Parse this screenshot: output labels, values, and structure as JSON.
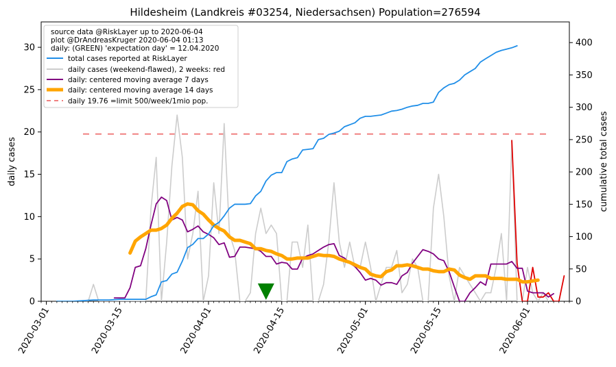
{
  "chart_data": {
    "type": "line",
    "title": "Hildesheim (Landkreis #03254, Niedersachsen) Population=276594",
    "ylabel_left": "daily cases",
    "ylabel_right": "cumulative total cases",
    "ylabel_left_color": "#800080",
    "ylabel_right_color": "#1f8ee8",
    "x_start": "2020-02-29",
    "x_end": "2020-06-09",
    "x_ticks": [
      "2020-03-01",
      "2020-03-15",
      "2020-04-01",
      "2020-04-15",
      "2020-05-01",
      "2020-05-15",
      "2020-06-01"
    ],
    "ylim_left": [
      0,
      33
    ],
    "ylim_right": [
      0,
      432
    ],
    "yticks_left": [
      "0",
      "5",
      "10",
      "15",
      "20",
      "25",
      "30"
    ],
    "yticks_right": [
      "0",
      "50",
      "100",
      "150",
      "200",
      "250",
      "300",
      "350",
      "400"
    ],
    "legend": {
      "placement": "top-left",
      "header_lines": [
        "source data @RiskLayer up to 2020-06-04",
        "plot @DrAndreasKruger 2020-06-04 01:13",
        "daily: (GREEN) 'expectation day' = 12.04.2020"
      ],
      "entries": [
        {
          "label": "total cases reported at RiskLayer",
          "color": "#1f8ee8",
          "style": "solid"
        },
        {
          "label": "daily cases (weekend-flawed), 2 weeks: red",
          "color": "#cccccc",
          "style": "solid"
        },
        {
          "label": "daily: centered moving average 7 days",
          "color": "#800080",
          "style": "solid"
        },
        {
          "label": "daily: centered moving average 14 days",
          "color": "#ffa500",
          "style": "thick"
        },
        {
          "label": "daily 19.76 =limit 500/week/1mio pop.",
          "color": "#f08080",
          "style": "dashed"
        }
      ]
    },
    "limit_line": {
      "y": 19.76,
      "from_day": 8,
      "to_day": 97
    },
    "expectation_day": 43,
    "cumulative": [
      [
        3,
        0
      ],
      [
        6,
        0
      ],
      [
        8,
        1
      ],
      [
        10,
        2
      ],
      [
        13,
        2
      ],
      [
        15,
        3
      ],
      [
        17,
        3
      ],
      [
        18,
        3
      ],
      [
        19,
        3
      ],
      [
        20,
        3
      ],
      [
        21,
        7
      ],
      [
        22,
        10
      ],
      [
        23,
        30
      ],
      [
        24,
        32
      ],
      [
        25,
        42
      ],
      [
        26,
        45
      ],
      [
        27,
        62
      ],
      [
        28,
        83
      ],
      [
        29,
        88
      ],
      [
        30,
        97
      ],
      [
        31,
        97
      ],
      [
        32,
        104
      ],
      [
        33,
        117
      ],
      [
        34,
        122
      ],
      [
        35,
        132
      ],
      [
        36,
        144
      ],
      [
        37,
        150
      ],
      [
        38,
        150
      ],
      [
        39,
        150
      ],
      [
        40,
        151
      ],
      [
        41,
        163
      ],
      [
        42,
        170
      ],
      [
        43,
        186
      ],
      [
        44,
        195
      ],
      [
        45,
        199
      ],
      [
        46,
        199
      ],
      [
        47,
        216
      ],
      [
        48,
        220
      ],
      [
        49,
        222
      ],
      [
        50,
        234
      ],
      [
        51,
        235
      ],
      [
        52,
        236
      ],
      [
        53,
        250
      ],
      [
        54,
        252
      ],
      [
        55,
        258
      ],
      [
        56,
        260
      ],
      [
        57,
        263
      ],
      [
        58,
        270
      ],
      [
        59,
        273
      ],
      [
        60,
        276
      ],
      [
        61,
        283
      ],
      [
        62,
        286
      ],
      [
        63,
        286
      ],
      [
        64,
        287
      ],
      [
        65,
        288
      ],
      [
        66,
        291
      ],
      [
        67,
        294
      ],
      [
        68,
        295
      ],
      [
        69,
        297
      ],
      [
        70,
        300
      ],
      [
        71,
        302
      ],
      [
        72,
        303
      ],
      [
        73,
        306
      ],
      [
        74,
        306
      ],
      [
        75,
        308
      ],
      [
        76,
        323
      ],
      [
        77,
        330
      ],
      [
        78,
        335
      ],
      [
        79,
        337
      ],
      [
        80,
        342
      ],
      [
        81,
        350
      ],
      [
        82,
        355
      ],
      [
        83,
        360
      ],
      [
        84,
        370
      ],
      [
        85,
        375
      ],
      [
        86,
        380
      ],
      [
        87,
        385
      ],
      [
        88,
        388
      ],
      [
        89,
        390
      ],
      [
        90,
        392
      ],
      [
        91,
        395
      ]
    ],
    "daily": [
      [
        5,
        0
      ],
      [
        6,
        0
      ],
      [
        7,
        0
      ],
      [
        8,
        0
      ],
      [
        9,
        0
      ],
      [
        10,
        2
      ],
      [
        11,
        0
      ],
      [
        12,
        0
      ],
      [
        13,
        0
      ],
      [
        14,
        0
      ],
      [
        15,
        0
      ],
      [
        16,
        0
      ],
      [
        17,
        0
      ],
      [
        18,
        0
      ],
      [
        19,
        0
      ],
      [
        20,
        0
      ],
      [
        21,
        11
      ],
      [
        22,
        17
      ],
      [
        23,
        0
      ],
      [
        24,
        7
      ],
      [
        25,
        16
      ],
      [
        26,
        22
      ],
      [
        27,
        17
      ],
      [
        28,
        5
      ],
      [
        29,
        8
      ],
      [
        30,
        13
      ],
      [
        31,
        0
      ],
      [
        32,
        3
      ],
      [
        33,
        14
      ],
      [
        34,
        8
      ],
      [
        35,
        21
      ],
      [
        36,
        8
      ],
      [
        37,
        6
      ],
      [
        38,
        0
      ],
      [
        39,
        0
      ],
      [
        40,
        1
      ],
      [
        41,
        8
      ],
      [
        42,
        11
      ],
      [
        43,
        8
      ],
      [
        44,
        9
      ],
      [
        45,
        8
      ],
      [
        46,
        0
      ],
      [
        47,
        0
      ],
      [
        48,
        7
      ],
      [
        49,
        7
      ],
      [
        50,
        4
      ],
      [
        51,
        9
      ],
      [
        52,
        0
      ],
      [
        53,
        0
      ],
      [
        54,
        2
      ],
      [
        55,
        7
      ],
      [
        56,
        14
      ],
      [
        57,
        7
      ],
      [
        58,
        4
      ],
      [
        59,
        7
      ],
      [
        60,
        4
      ],
      [
        61,
        4
      ],
      [
        62,
        7
      ],
      [
        63,
        4
      ],
      [
        64,
        0
      ],
      [
        65,
        2
      ],
      [
        66,
        4
      ],
      [
        67,
        4
      ],
      [
        68,
        6
      ],
      [
        69,
        1
      ],
      [
        70,
        2
      ],
      [
        71,
        5
      ],
      [
        72,
        4
      ],
      [
        73,
        0
      ],
      [
        74,
        0
      ],
      [
        75,
        11
      ],
      [
        76,
        15
      ],
      [
        77,
        10
      ],
      [
        78,
        3
      ],
      [
        79,
        0
      ],
      [
        80,
        4
      ],
      [
        81,
        3
      ],
      [
        82,
        2
      ],
      [
        83,
        1
      ],
      [
        84,
        0
      ],
      [
        85,
        1
      ],
      [
        86,
        1
      ],
      [
        87,
        4
      ],
      [
        88,
        8
      ],
      [
        89,
        0
      ],
      [
        90,
        19
      ],
      [
        91,
        0
      ],
      [
        92,
        0
      ],
      [
        93,
        4
      ],
      [
        94,
        1
      ],
      [
        95,
        0
      ],
      [
        96,
        1
      ],
      [
        97,
        0
      ]
    ],
    "daily_recent": [
      [
        90,
        19
      ],
      [
        91,
        4.5
      ],
      [
        92,
        0
      ],
      [
        93,
        0
      ],
      [
        94,
        4
      ],
      [
        95,
        0.5
      ],
      [
        96,
        0.5
      ],
      [
        97,
        1
      ],
      [
        98,
        0
      ],
      [
        99,
        0
      ],
      [
        100,
        3
      ]
    ],
    "ma7": [
      [
        14,
        0.4
      ],
      [
        15,
        0.4
      ],
      [
        16,
        0.4
      ],
      [
        17,
        1.6
      ],
      [
        18,
        4
      ],
      [
        19,
        4.2
      ],
      [
        20,
        6.2
      ],
      [
        21,
        9
      ],
      [
        22,
        11.5
      ],
      [
        23,
        12.3
      ],
      [
        24,
        11.9
      ],
      [
        25,
        9.6
      ],
      [
        26,
        9.9
      ],
      [
        27,
        9.6
      ],
      [
        28,
        8.2
      ],
      [
        29,
        8.5
      ],
      [
        30,
        8.9
      ],
      [
        31,
        8.2
      ],
      [
        32,
        7.9
      ],
      [
        33,
        7.5
      ],
      [
        34,
        6.7
      ],
      [
        35,
        6.9
      ],
      [
        36,
        5.2
      ],
      [
        37,
        5.3
      ],
      [
        38,
        6.4
      ],
      [
        39,
        6.4
      ],
      [
        40,
        6.3
      ],
      [
        41,
        6.2
      ],
      [
        42,
        5.9
      ],
      [
        43,
        5.3
      ],
      [
        44,
        5.3
      ],
      [
        45,
        4.4
      ],
      [
        46,
        4.6
      ],
      [
        47,
        4.5
      ],
      [
        48,
        3.8
      ],
      [
        49,
        3.8
      ],
      [
        50,
        5.1
      ],
      [
        51,
        5.4
      ],
      [
        52,
        5.6
      ],
      [
        53,
        6
      ],
      [
        54,
        6.4
      ],
      [
        55,
        6.7
      ],
      [
        56,
        6.8
      ],
      [
        57,
        5.4
      ],
      [
        58,
        5.1
      ],
      [
        59,
        4.5
      ],
      [
        60,
        4.1
      ],
      [
        61,
        3.4
      ],
      [
        62,
        2.5
      ],
      [
        63,
        2.7
      ],
      [
        64,
        2.5
      ],
      [
        65,
        1.9
      ],
      [
        66,
        2.2
      ],
      [
        67,
        2.2
      ],
      [
        68,
        2
      ],
      [
        69,
        3
      ],
      [
        70,
        3.4
      ],
      [
        71,
        4.5
      ],
      [
        72,
        5.3
      ],
      [
        73,
        6.1
      ],
      [
        74,
        5.9
      ],
      [
        75,
        5.6
      ],
      [
        76,
        5
      ],
      [
        77,
        4.8
      ],
      [
        78,
        3.5
      ],
      [
        79,
        1.7
      ],
      [
        80,
        0
      ],
      [
        81,
        0
      ],
      [
        82,
        1
      ],
      [
        83,
        1.6
      ],
      [
        84,
        2.3
      ],
      [
        85,
        1.9
      ],
      [
        86,
        4.4
      ],
      [
        87,
        4.4
      ],
      [
        88,
        4.4
      ],
      [
        89,
        4.4
      ],
      [
        90,
        4.7
      ],
      [
        91,
        3.9
      ],
      [
        92,
        3.9
      ],
      [
        93,
        1.2
      ],
      [
        94,
        1
      ],
      [
        95,
        1
      ],
      [
        96,
        1
      ],
      [
        97,
        0.5
      ],
      [
        98,
        0.9
      ]
    ],
    "ma14": [
      [
        17,
        5.7
      ],
      [
        18,
        7.1
      ],
      [
        19,
        7.6
      ],
      [
        20,
        8
      ],
      [
        21,
        8.4
      ],
      [
        22,
        8.4
      ],
      [
        23,
        8.6
      ],
      [
        24,
        9
      ],
      [
        25,
        9.8
      ],
      [
        26,
        10.4
      ],
      [
        27,
        11.2
      ],
      [
        28,
        11.5
      ],
      [
        29,
        11.4
      ],
      [
        30,
        10.7
      ],
      [
        31,
        10.3
      ],
      [
        32,
        9.6
      ],
      [
        33,
        9
      ],
      [
        34,
        8.6
      ],
      [
        35,
        8.3
      ],
      [
        36,
        7.6
      ],
      [
        37,
        7.2
      ],
      [
        38,
        7.2
      ],
      [
        39,
        7
      ],
      [
        40,
        6.8
      ],
      [
        41,
        6.2
      ],
      [
        42,
        6.2
      ],
      [
        43,
        6
      ],
      [
        44,
        5.9
      ],
      [
        45,
        5.6
      ],
      [
        46,
        5.4
      ],
      [
        47,
        5
      ],
      [
        48,
        5
      ],
      [
        49,
        5.1
      ],
      [
        50,
        5.1
      ],
      [
        51,
        5.1
      ],
      [
        52,
        5.3
      ],
      [
        53,
        5.5
      ],
      [
        54,
        5.4
      ],
      [
        55,
        5.4
      ],
      [
        56,
        5.3
      ],
      [
        57,
        5
      ],
      [
        58,
        4.8
      ],
      [
        59,
        4.6
      ],
      [
        60,
        4.3
      ],
      [
        61,
        4
      ],
      [
        62,
        3.8
      ],
      [
        63,
        3.2
      ],
      [
        64,
        3
      ],
      [
        65,
        2.9
      ],
      [
        66,
        3.5
      ],
      [
        67,
        3.7
      ],
      [
        68,
        4.2
      ],
      [
        69,
        4.2
      ],
      [
        70,
        4.3
      ],
      [
        71,
        4.2
      ],
      [
        72,
        4
      ],
      [
        73,
        3.8
      ],
      [
        74,
        3.8
      ],
      [
        75,
        3.6
      ],
      [
        76,
        3.5
      ],
      [
        77,
        3.5
      ],
      [
        78,
        3.8
      ],
      [
        79,
        3.7
      ],
      [
        80,
        3.1
      ],
      [
        81,
        2.8
      ],
      [
        82,
        2.6
      ],
      [
        83,
        3
      ],
      [
        84,
        3
      ],
      [
        85,
        3
      ],
      [
        86,
        2.7
      ],
      [
        87,
        2.7
      ],
      [
        88,
        2.7
      ],
      [
        89,
        2.6
      ],
      [
        90,
        2.6
      ],
      [
        91,
        2.6
      ],
      [
        92,
        2.3
      ],
      [
        93,
        2.3
      ],
      [
        94,
        2.4
      ],
      [
        95,
        2.5
      ]
    ],
    "grid": false
  }
}
